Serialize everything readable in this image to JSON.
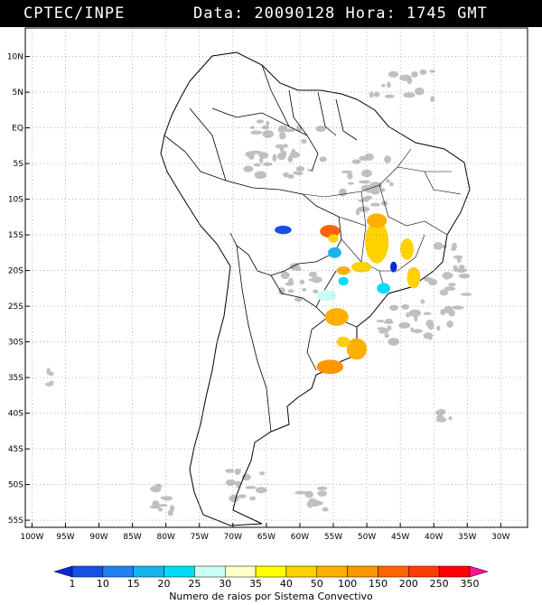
{
  "header": {
    "left": "CPTEC/INPE",
    "right": "Data: 20090128 Hora: 1745 GMT"
  },
  "map": {
    "region": "South America",
    "lat_labels": [
      "10N",
      "5N",
      "EQ",
      "5S",
      "10S",
      "15S",
      "20S",
      "25S",
      "30S",
      "35S",
      "40S",
      "45S",
      "50S",
      "55S"
    ],
    "lat_values": [
      10,
      5,
      0,
      -5,
      -10,
      -15,
      -20,
      -25,
      -30,
      -35,
      -40,
      -45,
      -50,
      -55
    ],
    "lon_labels": [
      "100W",
      "95W",
      "90W",
      "85W",
      "80W",
      "75W",
      "70W",
      "65W",
      "60W",
      "55W",
      "50W",
      "45W",
      "40W",
      "35W",
      "30W"
    ],
    "lon_values": [
      -100,
      -95,
      -90,
      -85,
      -80,
      -75,
      -70,
      -65,
      -60,
      -55,
      -50,
      -45,
      -40,
      -35,
      -30
    ],
    "lat_range": [
      -56,
      14
    ],
    "lon_range": [
      -101,
      -26
    ],
    "grid": "dotted",
    "cloud_color": "#c0c0c0"
  },
  "legend": {
    "title": "Numero de raios por Sistema Convectivo",
    "labels": [
      "1",
      "10",
      "15",
      "20",
      "25",
      "30",
      "35",
      "40",
      "50",
      "100",
      "150",
      "200",
      "250",
      "350"
    ],
    "colors": [
      "#0a28d2",
      "#1650e6",
      "#1e82f0",
      "#16b4f0",
      "#00dcf5",
      "#c8fff5",
      "#ffffc8",
      "#ffff00",
      "#ffd200",
      "#ffaf00",
      "#ff9600",
      "#ff6400",
      "#ff3c00",
      "#ff0000",
      "#ff1493"
    ]
  },
  "systems": [
    {
      "lon": -48.5,
      "lat": -16.0,
      "w": 3.5,
      "h": 6,
      "color": "#ffd200"
    },
    {
      "lon": -48.5,
      "lat": -13.0,
      "w": 3,
      "h": 2,
      "color": "#ffaf00"
    },
    {
      "lon": -44.0,
      "lat": -17.0,
      "w": 2,
      "h": 3,
      "color": "#ffd200"
    },
    {
      "lon": -43.0,
      "lat": -21.0,
      "w": 2,
      "h": 3,
      "color": "#ffd200"
    },
    {
      "lon": -46.0,
      "lat": -19.5,
      "w": 1,
      "h": 1.5,
      "color": "#0a28d2"
    },
    {
      "lon": -50.8,
      "lat": -19.5,
      "w": 3,
      "h": 1.5,
      "color": "#ffd200"
    },
    {
      "lon": -47.5,
      "lat": -22.5,
      "w": 2,
      "h": 1.5,
      "color": "#00dcf5"
    },
    {
      "lon": -55.5,
      "lat": -14.5,
      "w": 3,
      "h": 1.8,
      "color": "#ff6400"
    },
    {
      "lon": -54.8,
      "lat": -17.5,
      "w": 2,
      "h": 1.5,
      "color": "#16b4f0"
    },
    {
      "lon": -55.0,
      "lat": -15.5,
      "w": 1.5,
      "h": 1.2,
      "color": "#ffd200"
    },
    {
      "lon": -62.5,
      "lat": -14.3,
      "w": 2.5,
      "h": 1.2,
      "color": "#1650e6"
    },
    {
      "lon": -53.5,
      "lat": -20.0,
      "w": 2,
      "h": 1.2,
      "color": "#ffaf00"
    },
    {
      "lon": -53.5,
      "lat": -21.5,
      "w": 1.5,
      "h": 1.2,
      "color": "#00dcf5"
    },
    {
      "lon": -56.0,
      "lat": -23.5,
      "w": 3,
      "h": 1.5,
      "color": "#c8fff5"
    },
    {
      "lon": -54.5,
      "lat": -26.5,
      "w": 3.5,
      "h": 2.5,
      "color": "#ffaf00"
    },
    {
      "lon": -51.5,
      "lat": -31.0,
      "w": 3,
      "h": 3,
      "color": "#ffaf00"
    },
    {
      "lon": -55.5,
      "lat": -33.5,
      "w": 4,
      "h": 2,
      "color": "#ff9600"
    },
    {
      "lon": -53.5,
      "lat": -30.0,
      "w": 2,
      "h": 1.5,
      "color": "#ffd200"
    }
  ]
}
